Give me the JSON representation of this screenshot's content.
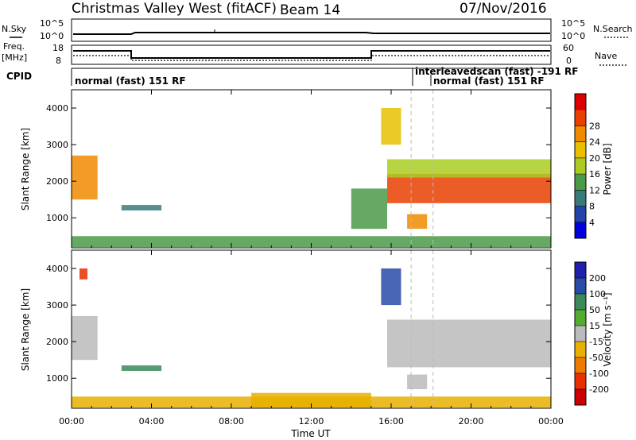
{
  "header": {
    "station": "Christmas Valley West (fitACF)",
    "beam": "Beam 14",
    "date": "07/Nov/2016"
  },
  "status_panels": {
    "nsky_label": "N.Sky",
    "nsky_ticks": [
      "10^5",
      "10^0"
    ],
    "nsearch_label": "N.Search",
    "nsearch_ticks": [
      "10^5",
      "10^0"
    ],
    "freq_label_1": "Freq.",
    "freq_label_2": "[MHz]",
    "freq_ticks": [
      "18",
      "8"
    ],
    "nave_label": "Nave",
    "nave_ticks": [
      "60",
      "0"
    ],
    "cpid_label": "CPID",
    "cpid_segments": [
      {
        "label": "normal (fast) 151 RF",
        "start_hr": 0,
        "end_hr": 17.0
      },
      {
        "label": "interleavedscan (fast) -191 RF",
        "start_hr": 17.0,
        "end_hr": 18.1
      },
      {
        "label": "normal (fast) 151 RF",
        "start_hr": 18.1,
        "end_hr": 24
      }
    ],
    "freq_steps_mhz": [
      {
        "start_hr": 0,
        "end_hr": 2.9,
        "value": 16
      },
      {
        "start_hr": 2.9,
        "end_hr": 15.0,
        "value": 10
      },
      {
        "start_hr": 15.0,
        "end_hr": 24,
        "value": 16
      }
    ]
  },
  "power_colorbar": {
    "label": "Power [dB]",
    "ticks": [
      "4",
      "8",
      "12",
      "16",
      "20",
      "24",
      "28"
    ],
    "colors": [
      "#0000dd",
      "#2244aa",
      "#3a7a7a",
      "#4a9a4a",
      "#aacc22",
      "#e8c000",
      "#f08a00",
      "#e84000",
      "#dd0000"
    ]
  },
  "velocity_colorbar": {
    "label": "Velocity [m s⁻¹]",
    "ticks": [
      "200",
      "100",
      "50",
      "15",
      "-15",
      "-50",
      "-100",
      "-200"
    ],
    "colors": [
      "#2020aa",
      "#2a4aa8",
      "#3a8a5a",
      "#55aa33",
      "#bbbbbb",
      "#e8b000",
      "#f07a00",
      "#e83000",
      "#cc0000"
    ]
  },
  "chart_data": {
    "type": "heatmap",
    "xlabel": "Time UT",
    "ylabel": "Slant Range [km]",
    "x_ticks": [
      "00:00",
      "04:00",
      "08:00",
      "12:00",
      "16:00",
      "20:00",
      "00:00"
    ],
    "y_ticks": [
      "1000",
      "2000",
      "3000",
      "4000"
    ],
    "xlim_hours": [
      0,
      24
    ],
    "ylim_km": [
      180,
      4500
    ],
    "power_regions": [
      {
        "t0": 0.0,
        "t1": 1.3,
        "r0": 1500,
        "r1": 2700,
        "power_db": 24
      },
      {
        "t0": 0.0,
        "t1": 24,
        "r0": 200,
        "r1": 500,
        "power_db": 12
      },
      {
        "t0": 2.5,
        "t1": 4.5,
        "r0": 1200,
        "r1": 1350,
        "power_db": 8
      },
      {
        "t0": 14.0,
        "t1": 15.8,
        "r0": 700,
        "r1": 1800,
        "power_db": 12
      },
      {
        "t0": 15.5,
        "t1": 16.5,
        "r0": 3000,
        "r1": 4000,
        "power_db": 20
      },
      {
        "t0": 15.8,
        "t1": 24,
        "r0": 1400,
        "r1": 2200,
        "power_db": 28
      },
      {
        "t0": 15.8,
        "t1": 24,
        "r0": 2100,
        "r1": 2600,
        "power_db": 14
      },
      {
        "t0": 16.8,
        "t1": 17.8,
        "r0": 700,
        "r1": 1100,
        "power_db": 24
      }
    ],
    "velocity_regions": [
      {
        "t0": 0.0,
        "t1": 1.3,
        "r0": 1500,
        "r1": 2700,
        "velocity": 0
      },
      {
        "t0": 0.4,
        "t1": 0.8,
        "r0": 3700,
        "r1": 4000,
        "velocity": -200
      },
      {
        "t0": 0.0,
        "t1": 24,
        "r0": 200,
        "r1": 500,
        "velocity": -30
      },
      {
        "t0": 9.0,
        "t1": 15.0,
        "r0": 200,
        "r1": 600,
        "velocity": -50
      },
      {
        "t0": 2.5,
        "t1": 4.5,
        "r0": 1200,
        "r1": 1350,
        "velocity": 50
      },
      {
        "t0": 15.5,
        "t1": 16.5,
        "r0": 3000,
        "r1": 4000,
        "velocity": 100
      },
      {
        "t0": 15.8,
        "t1": 24,
        "r0": 1300,
        "r1": 2600,
        "velocity": 0
      },
      {
        "t0": 16.8,
        "t1": 17.8,
        "r0": 700,
        "r1": 1100,
        "velocity": 0
      }
    ]
  }
}
